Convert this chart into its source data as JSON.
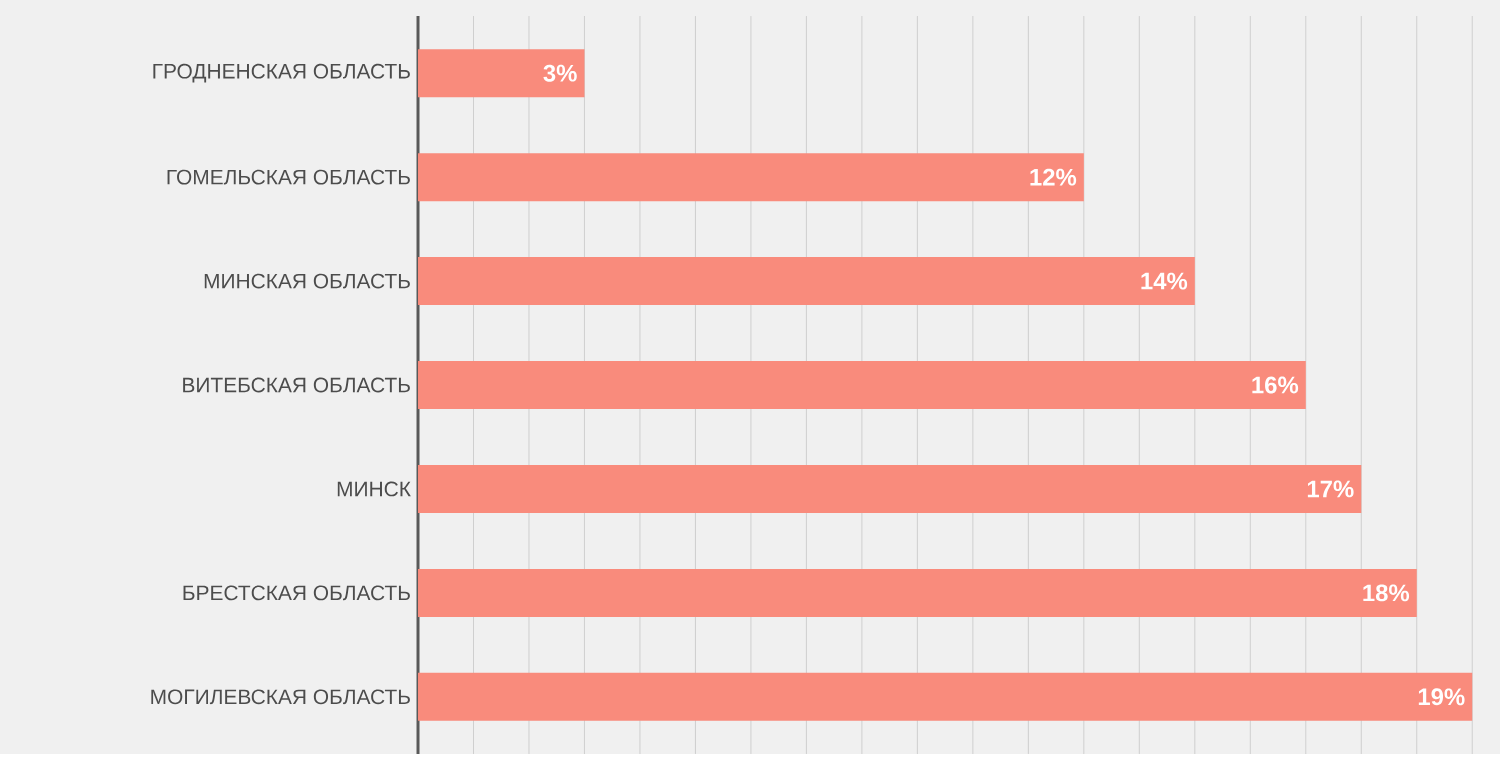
{
  "chart_data": {
    "type": "bar",
    "orientation": "horizontal",
    "categories": [
      "ГРОДНЕНСКАЯ ОБЛАСТЬ",
      "ГОМЕЛЬСКАЯ ОБЛАСТЬ",
      "МИНСКАЯ ОБЛАСТЬ",
      "ВИТЕБСКАЯ ОБЛАСТЬ",
      "МИНСК",
      "БРЕСТСКАЯ ОБЛАСТЬ",
      "МОГИЛЕВСКАЯ ОБЛАСТЬ"
    ],
    "values": [
      3,
      12,
      14,
      16,
      17,
      18,
      19
    ],
    "value_labels": [
      "3%",
      "12%",
      "14%",
      "16%",
      "17%",
      "18%",
      "19%"
    ],
    "color": "#f98b7c",
    "xlim": [
      0,
      19.5
    ],
    "grid": "x",
    "tick_labels": "y"
  }
}
